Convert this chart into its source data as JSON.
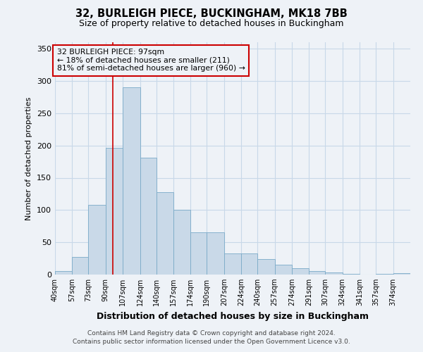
{
  "title1": "32, BURLEIGH PIECE, BUCKINGHAM, MK18 7BB",
  "title2": "Size of property relative to detached houses in Buckingham",
  "xlabel": "Distribution of detached houses by size in Buckingham",
  "ylabel": "Number of detached properties",
  "annotation_line1": "32 BURLEIGH PIECE: 97sqm",
  "annotation_line2": "← 18% of detached houses are smaller (211)",
  "annotation_line3": "81% of semi-detached houses are larger (960) →",
  "footer1": "Contains HM Land Registry data © Crown copyright and database right 2024.",
  "footer2": "Contains public sector information licensed under the Open Government Licence v3.0.",
  "property_size": 97,
  "bin_labels": [
    "40sqm",
    "57sqm",
    "73sqm",
    "90sqm",
    "107sqm",
    "124sqm",
    "140sqm",
    "157sqm",
    "174sqm",
    "190sqm",
    "207sqm",
    "224sqm",
    "240sqm",
    "257sqm",
    "274sqm",
    "291sqm",
    "307sqm",
    "324sqm",
    "341sqm",
    "357sqm",
    "374sqm"
  ],
  "bin_edges": [
    40,
    57,
    73,
    90,
    107,
    124,
    140,
    157,
    174,
    190,
    207,
    224,
    240,
    257,
    274,
    291,
    307,
    324,
    341,
    357,
    374,
    391
  ],
  "bar_heights": [
    5,
    27,
    108,
    196,
    290,
    181,
    128,
    100,
    66,
    65,
    33,
    33,
    24,
    15,
    10,
    5,
    3,
    1,
    0,
    1,
    2
  ],
  "bar_color": "#c9d9e8",
  "bar_edge_color": "#7aaac8",
  "grid_color": "#c8d8e8",
  "annotation_box_color": "#cc0000",
  "vline_color": "#cc0000",
  "background_color": "#eef2f7",
  "ylim": [
    0,
    360
  ],
  "yticks": [
    0,
    50,
    100,
    150,
    200,
    250,
    300,
    350
  ],
  "title1_fontsize": 10.5,
  "title2_fontsize": 9,
  "ylabel_fontsize": 8,
  "xlabel_fontsize": 9,
  "tick_fontsize": 7,
  "footer_fontsize": 6.5
}
